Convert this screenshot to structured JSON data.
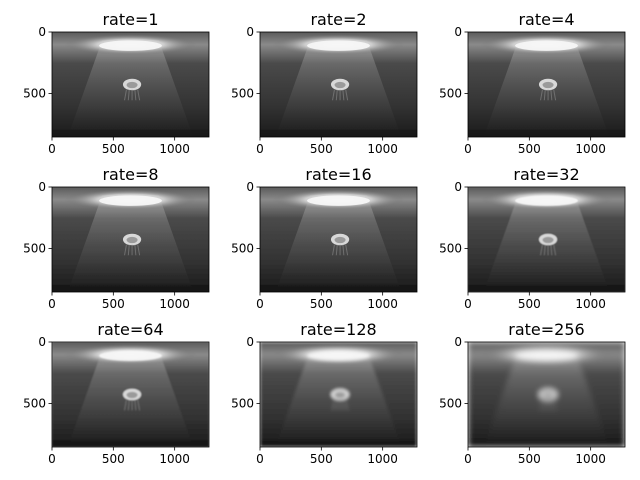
{
  "figure": {
    "rows": 3,
    "cols": 3,
    "background": "#ffffff"
  },
  "chart_data": [
    {
      "type": "heatmap",
      "title": "rate=1",
      "rate": 1,
      "xlim": [
        0,
        1280
      ],
      "ylim": [
        853,
        0
      ],
      "xticks": [
        0,
        500,
        1000
      ],
      "yticks": [
        0,
        500
      ],
      "colormap": "gray",
      "blur_level": 0
    },
    {
      "type": "heatmap",
      "title": "rate=2",
      "rate": 2,
      "xlim": [
        0,
        1280
      ],
      "ylim": [
        853,
        0
      ],
      "xticks": [
        0,
        500,
        1000
      ],
      "yticks": [
        0,
        500
      ],
      "colormap": "gray",
      "blur_level": 0
    },
    {
      "type": "heatmap",
      "title": "rate=4",
      "rate": 4,
      "xlim": [
        0,
        1280
      ],
      "ylim": [
        853,
        0
      ],
      "xticks": [
        0,
        500,
        1000
      ],
      "yticks": [
        0,
        500
      ],
      "colormap": "gray",
      "blur_level": 0
    },
    {
      "type": "heatmap",
      "title": "rate=8",
      "rate": 8,
      "xlim": [
        0,
        1280
      ],
      "ylim": [
        853,
        0
      ],
      "xticks": [
        0,
        500,
        1000
      ],
      "yticks": [
        0,
        500
      ],
      "colormap": "gray",
      "blur_level": 0.2
    },
    {
      "type": "heatmap",
      "title": "rate=16",
      "rate": 16,
      "xlim": [
        0,
        1280
      ],
      "ylim": [
        853,
        0
      ],
      "xticks": [
        0,
        500,
        1000
      ],
      "yticks": [
        0,
        500
      ],
      "colormap": "gray",
      "blur_level": 0.3
    },
    {
      "type": "heatmap",
      "title": "rate=32",
      "rate": 32,
      "xlim": [
        0,
        1280
      ],
      "ylim": [
        853,
        0
      ],
      "xticks": [
        0,
        500,
        1000
      ],
      "yticks": [
        0,
        500
      ],
      "colormap": "gray",
      "blur_level": 0.5
    },
    {
      "type": "heatmap",
      "title": "rate=64",
      "rate": 64,
      "xlim": [
        0,
        1280
      ],
      "ylim": [
        853,
        0
      ],
      "xticks": [
        0,
        500,
        1000
      ],
      "yticks": [
        0,
        500
      ],
      "colormap": "gray",
      "blur_level": 0.8
    },
    {
      "type": "heatmap",
      "title": "rate=128",
      "rate": 128,
      "xlim": [
        0,
        1280
      ],
      "ylim": [
        853,
        0
      ],
      "xticks": [
        0,
        500,
        1000
      ],
      "yticks": [
        0,
        500
      ],
      "colormap": "gray",
      "blur_level": 1.5
    },
    {
      "type": "heatmap",
      "title": "rate=256",
      "rate": 256,
      "xlim": [
        0,
        1280
      ],
      "ylim": [
        853,
        0
      ],
      "xticks": [
        0,
        500,
        1000
      ],
      "yticks": [
        0,
        500
      ],
      "colormap": "gray",
      "blur_level": 3
    }
  ]
}
